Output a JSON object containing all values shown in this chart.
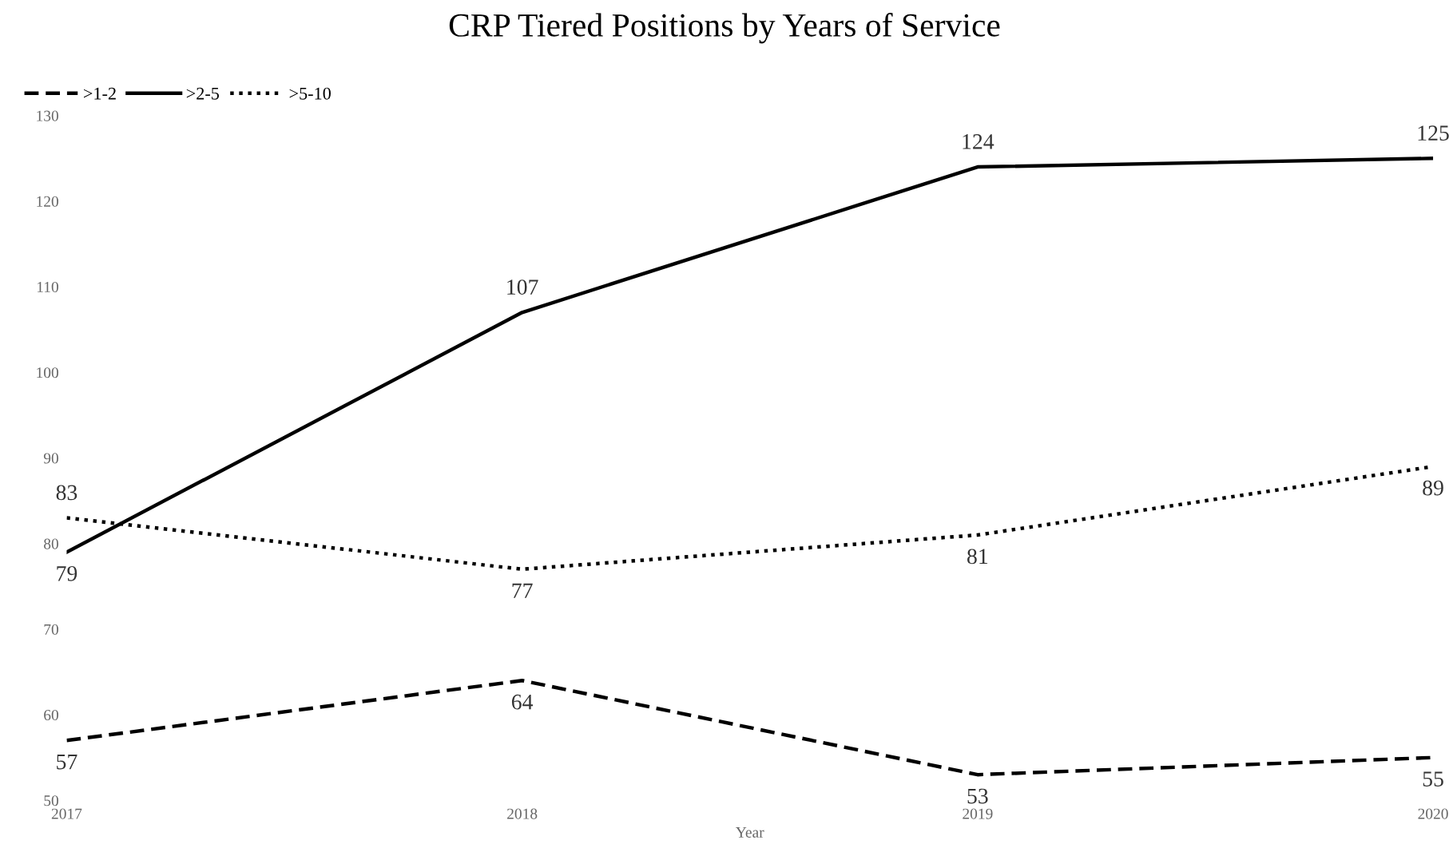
{
  "chart_data": {
    "type": "line",
    "title": "CRP Tiered Positions by Years of Service",
    "xlabel": "Year",
    "categories": [
      "2017",
      "2018",
      "2019",
      "2020"
    ],
    "series": [
      {
        "name": ">1-2",
        "color": "#000000",
        "line_style": "dashed",
        "values": [
          57,
          64,
          53,
          55
        ]
      },
      {
        "name": ">2-5",
        "color": "#000000",
        "line_style": "solid",
        "values": [
          79,
          107,
          124,
          125
        ]
      },
      {
        "name": ">5-10",
        "color": "#000000",
        "line_style": "dotted",
        "values": [
          83,
          77,
          81,
          89
        ]
      }
    ],
    "ylim": [
      50,
      130
    ],
    "yticks": [
      50,
      60,
      70,
      80,
      90,
      100,
      110,
      120,
      130
    ],
    "data_labels": true,
    "legend": "top left",
    "grid": false
  }
}
